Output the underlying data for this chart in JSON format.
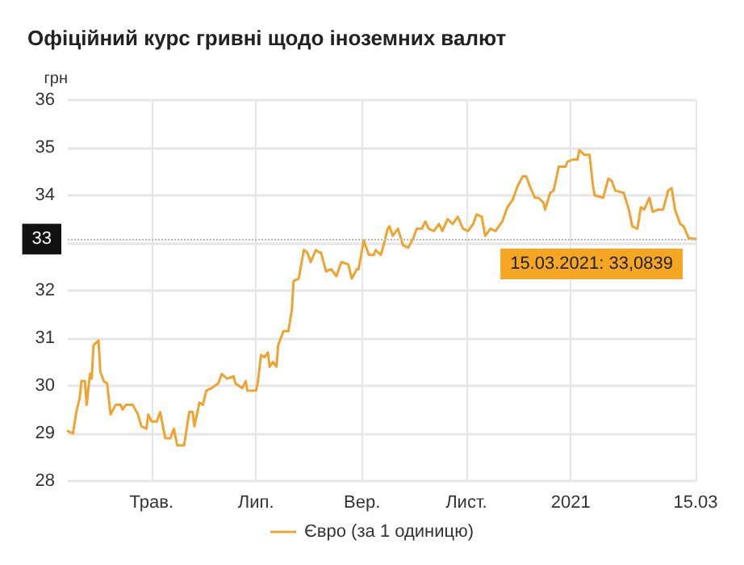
{
  "chart_data": {
    "type": "line",
    "title": "Офіційний курс гривні щодо іноземних валют",
    "ylabel": "грн",
    "xlim": [
      "2020-03-13",
      "2021-03-15"
    ],
    "xticks": [
      {
        "value": "2020-05-01",
        "label": "Трав."
      },
      {
        "value": "2020-07-01",
        "label": "Лип."
      },
      {
        "value": "2020-09-01",
        "label": "Вер."
      },
      {
        "value": "2020-11-01",
        "label": "Лист."
      },
      {
        "value": "2021-01-01",
        "label": "2021"
      },
      {
        "value": "2021-03-15",
        "label": "15.03"
      }
    ],
    "ylim": [
      28,
      36
    ],
    "yticks": [
      28,
      29,
      30,
      31,
      32,
      {
        "value": 33,
        "label": null
      },
      34,
      35,
      36
    ],
    "grid": true,
    "legend": "bottom",
    "marker": "none",
    "line_style": "solid",
    "ref_lines": [
      {
        "axis": "y",
        "value": 33.0839,
        "label": "33",
        "color": "#bbbbbb",
        "line_style": "dotted"
      }
    ],
    "annotations": [
      {
        "text": "15.03.2021: 33,0839",
        "x": "2021-03-15",
        "y": 33.0839
      }
    ],
    "series": [
      {
        "name": "Євро (за 1 одиницю)",
        "color": "#f0a430",
        "x": [
          "2020-03-13",
          "2020-03-16",
          "2020-03-18",
          "2020-03-20",
          "2020-03-21",
          "2020-03-23",
          "2020-03-24",
          "2020-03-26",
          "2020-03-27",
          "2020-03-28",
          "2020-03-31",
          "2020-04-01",
          "2020-04-03",
          "2020-04-05",
          "2020-04-07",
          "2020-04-10",
          "2020-04-13",
          "2020-04-14",
          "2020-04-16",
          "2020-04-20",
          "2020-04-23",
          "2020-04-25",
          "2020-04-28",
          "2020-04-29",
          "2020-05-01",
          "2020-05-04",
          "2020-05-06",
          "2020-05-09",
          "2020-05-12",
          "2020-05-14",
          "2020-05-16",
          "2020-05-20",
          "2020-05-23",
          "2020-05-25",
          "2020-05-26",
          "2020-05-29",
          "2020-05-31",
          "2020-06-02",
          "2020-06-05",
          "2020-06-09",
          "2020-06-11",
          "2020-06-14",
          "2020-06-18",
          "2020-06-19",
          "2020-06-23",
          "2020-06-25",
          "2020-06-26",
          "2020-07-01",
          "2020-07-02",
          "2020-07-04",
          "2020-07-06",
          "2020-07-08",
          "2020-07-09",
          "2020-07-11",
          "2020-07-13",
          "2020-07-14",
          "2020-07-17",
          "2020-07-20",
          "2020-07-22",
          "2020-07-23",
          "2020-07-26",
          "2020-07-29",
          "2020-07-31",
          "2020-08-02",
          "2020-08-05",
          "2020-08-07",
          "2020-08-08",
          "2020-08-11",
          "2020-08-14",
          "2020-08-17",
          "2020-08-20",
          "2020-08-24",
          "2020-08-26",
          "2020-08-29",
          "2020-08-30",
          "2020-09-02",
          "2020-09-05",
          "2020-09-08",
          "2020-09-09",
          "2020-09-12",
          "2020-09-14",
          "2020-09-16",
          "2020-09-17",
          "2020-09-19",
          "2020-09-22",
          "2020-09-25",
          "2020-09-28",
          "2020-10-01",
          "2020-10-03",
          "2020-10-06",
          "2020-10-08",
          "2020-10-10",
          "2020-10-13",
          "2020-10-16",
          "2020-10-18",
          "2020-10-21",
          "2020-10-24",
          "2020-10-27",
          "2020-10-30",
          "2020-11-02",
          "2020-11-05",
          "2020-11-07",
          "2020-11-10",
          "2020-11-12",
          "2020-11-15",
          "2020-11-18",
          "2020-11-22",
          "2020-11-25",
          "2020-11-28",
          "2020-12-01",
          "2020-12-04",
          "2020-12-06",
          "2020-12-08",
          "2020-12-11",
          "2020-12-13",
          "2020-12-16",
          "2020-12-17",
          "2020-12-20",
          "2020-12-22",
          "2020-12-25",
          "2020-12-29",
          "2020-12-30",
          "2021-01-02",
          "2021-01-05",
          "2021-01-06",
          "2021-01-09",
          "2021-01-12",
          "2021-01-14",
          "2021-01-15",
          "2021-01-20",
          "2021-01-23",
          "2021-01-25",
          "2021-01-27",
          "2021-02-01",
          "2021-02-04",
          "2021-02-06",
          "2021-02-09",
          "2021-02-11",
          "2021-02-13",
          "2021-02-16",
          "2021-02-18",
          "2021-02-21",
          "2021-02-24",
          "2021-02-27",
          "2021-03-01",
          "2021-03-03",
          "2021-03-06",
          "2021-03-08",
          "2021-03-11",
          "2021-03-15"
        ],
        "values": [
          29.05,
          29.0,
          29.45,
          29.75,
          30.1,
          30.1,
          29.6,
          30.25,
          30.15,
          30.85,
          30.95,
          30.3,
          30.1,
          30.05,
          29.4,
          29.6,
          29.6,
          29.5,
          29.6,
          29.6,
          29.4,
          29.15,
          29.1,
          29.4,
          29.25,
          29.25,
          29.45,
          28.9,
          28.9,
          29.1,
          28.75,
          28.75,
          29.45,
          29.45,
          29.15,
          29.65,
          29.6,
          29.9,
          29.95,
          30.05,
          30.25,
          30.15,
          30.2,
          30.05,
          29.95,
          30.1,
          29.9,
          29.9,
          30.05,
          30.65,
          30.6,
          30.7,
          30.4,
          30.5,
          30.4,
          30.85,
          31.15,
          31.15,
          31.6,
          32.2,
          32.25,
          32.85,
          32.8,
          32.6,
          32.85,
          32.8,
          32.8,
          32.4,
          32.45,
          32.3,
          32.6,
          32.55,
          32.25,
          32.45,
          32.45,
          33.05,
          32.75,
          32.75,
          32.85,
          32.75,
          33.0,
          33.3,
          33.35,
          33.15,
          33.3,
          32.95,
          32.9,
          33.1,
          33.3,
          33.3,
          33.45,
          33.3,
          33.25,
          33.4,
          33.25,
          33.5,
          33.4,
          33.55,
          33.3,
          33.25,
          33.4,
          33.6,
          33.55,
          33.15,
          33.3,
          33.25,
          33.45,
          33.75,
          33.9,
          34.2,
          34.4,
          34.4,
          34.2,
          33.95,
          33.95,
          33.85,
          33.7,
          34.05,
          34.1,
          34.6,
          34.6,
          34.7,
          34.75,
          34.75,
          34.95,
          34.85,
          34.85,
          34.2,
          34.0,
          33.95,
          34.35,
          34.3,
          34.1,
          34.05,
          33.7,
          33.35,
          33.3,
          33.75,
          33.7,
          33.95,
          33.65,
          33.7,
          33.7,
          34.1,
          34.15,
          33.7,
          33.4,
          33.35,
          33.1,
          33.0839
        ]
      }
    ]
  }
}
